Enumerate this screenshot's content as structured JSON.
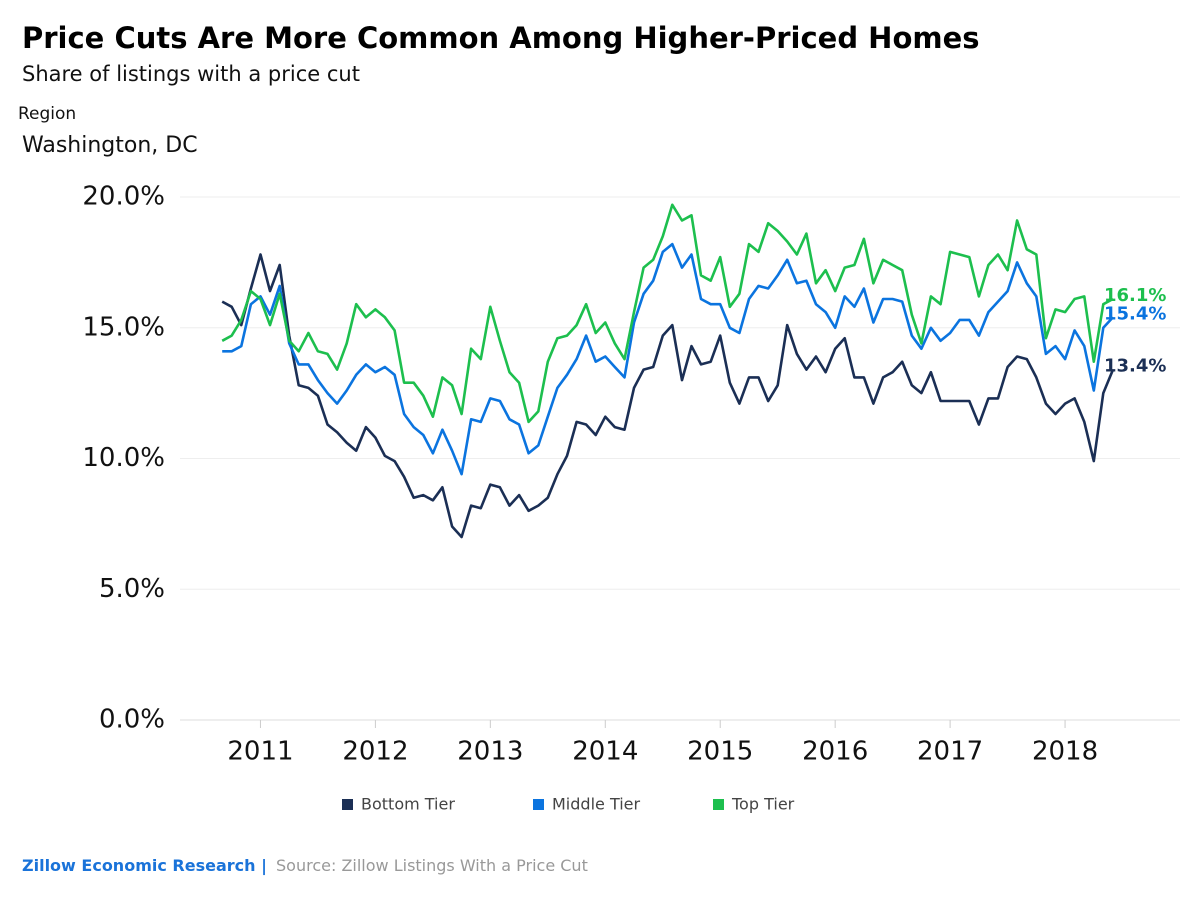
{
  "chart_data": {
    "type": "line",
    "title": "Price Cuts Are More Common Among Higher-Priced Homes",
    "subtitle": "Share of listings with a price cut",
    "filter_label": "Region",
    "filter_value": "Washington, DC",
    "footer_brand": "Zillow Economic Research |",
    "footer_source": "Source: Zillow Listings With a Price Cut",
    "x": [
      2010.667,
      2010.75,
      2010.833,
      2010.917,
      2011.0,
      2011.083,
      2011.167,
      2011.25,
      2011.333,
      2011.417,
      2011.5,
      2011.583,
      2011.667,
      2011.75,
      2011.833,
      2011.917,
      2012.0,
      2012.083,
      2012.167,
      2012.25,
      2012.333,
      2012.417,
      2012.5,
      2012.583,
      2012.667,
      2012.75,
      2012.833,
      2012.917,
      2013.0,
      2013.083,
      2013.167,
      2013.25,
      2013.333,
      2013.417,
      2013.5,
      2013.583,
      2013.667,
      2013.75,
      2013.833,
      2013.917,
      2014.0,
      2014.083,
      2014.167,
      2014.25,
      2014.333,
      2014.417,
      2014.5,
      2014.583,
      2014.667,
      2014.75,
      2014.833,
      2014.917,
      2015.0,
      2015.083,
      2015.167,
      2015.25,
      2015.333,
      2015.417,
      2015.5,
      2015.583,
      2015.667,
      2015.75,
      2015.833,
      2015.917,
      2016.0,
      2016.083,
      2016.167,
      2016.25,
      2016.333,
      2016.417,
      2016.5,
      2016.583,
      2016.667,
      2016.75,
      2016.833,
      2016.917,
      2017.0,
      2017.083,
      2017.167,
      2017.25,
      2017.333,
      2017.417,
      2017.5,
      2017.583,
      2017.667,
      2017.75,
      2017.833,
      2017.917,
      2018.0,
      2018.083,
      2018.167,
      2018.25,
      2018.333,
      2018.417
    ],
    "xlim": [
      2010.3,
      2019
    ],
    "xticks": [
      2011,
      2012,
      2013,
      2014,
      2015,
      2016,
      2017,
      2018
    ],
    "ylim": [
      0,
      20
    ],
    "yticks": [
      {
        "value": 0,
        "label": "0.0%"
      },
      {
        "value": 5,
        "label": "5.0%"
      },
      {
        "value": 10,
        "label": "10.0%"
      },
      {
        "value": 15,
        "label": "15.0%"
      },
      {
        "value": 20,
        "label": "20.0%"
      }
    ],
    "grid": true,
    "legend": "bottom",
    "series": [
      {
        "name": "Bottom Tier",
        "color": "#1b2f55",
        "values": [
          16.0,
          15.8,
          15.1,
          16.5,
          17.8,
          16.4,
          17.4,
          14.7,
          12.8,
          12.7,
          12.4,
          11.3,
          11.0,
          10.6,
          10.3,
          11.2,
          10.8,
          10.1,
          9.9,
          9.3,
          8.5,
          8.6,
          8.4,
          8.9,
          7.4,
          7.0,
          8.2,
          8.1,
          9.0,
          8.9,
          8.2,
          8.6,
          8.0,
          8.2,
          8.5,
          9.4,
          10.1,
          11.4,
          11.3,
          10.9,
          11.6,
          11.2,
          11.1,
          12.7,
          13.4,
          13.5,
          14.7,
          15.1,
          13.0,
          14.3,
          13.6,
          13.7,
          14.7,
          12.9,
          12.1,
          13.1,
          13.1,
          12.2,
          12.8,
          15.1,
          14.0,
          13.4,
          13.9,
          13.3,
          14.2,
          14.6,
          13.1,
          13.1,
          12.1,
          13.1,
          13.3,
          13.7,
          12.8,
          12.5,
          13.3,
          12.2,
          12.2,
          12.2,
          12.2,
          11.3,
          12.3,
          12.3,
          13.5,
          13.9,
          13.8,
          13.1,
          12.1,
          11.7,
          12.1,
          12.3,
          11.4,
          9.9,
          12.5,
          13.4
        ],
        "value_labels": [
          null,
          null,
          null,
          null,
          null,
          null,
          null,
          null,
          null,
          null,
          null,
          null,
          null,
          null,
          null,
          null,
          null,
          null,
          null,
          null,
          null,
          null,
          null,
          null,
          null,
          null,
          null,
          null,
          null,
          null,
          null,
          null,
          null,
          null,
          null,
          null,
          null,
          null,
          null,
          null,
          null,
          null,
          null,
          null,
          null,
          null,
          null,
          null,
          null,
          null,
          null,
          null,
          null,
          null,
          null,
          null,
          null,
          null,
          null,
          null,
          null,
          null,
          null,
          null,
          null,
          null,
          null,
          null,
          null,
          null,
          null,
          null,
          null,
          null,
          null,
          null,
          null,
          null,
          null,
          null,
          null,
          null,
          null,
          null,
          null,
          null,
          null,
          null,
          null,
          null,
          null,
          null,
          null,
          "13.4%"
        ]
      },
      {
        "name": "Middle Tier",
        "color": "#0b74df",
        "values": [
          14.1,
          14.1,
          14.3,
          15.9,
          16.2,
          15.5,
          16.6,
          14.4,
          13.6,
          13.6,
          13.0,
          12.5,
          12.1,
          12.6,
          13.2,
          13.6,
          13.3,
          13.5,
          13.2,
          11.7,
          11.2,
          10.9,
          10.2,
          11.1,
          10.3,
          9.4,
          11.5,
          11.4,
          12.3,
          12.2,
          11.5,
          11.3,
          10.2,
          10.5,
          11.6,
          12.7,
          13.2,
          13.8,
          14.7,
          13.7,
          13.9,
          13.5,
          13.1,
          15.2,
          16.3,
          16.8,
          17.9,
          18.2,
          17.3,
          17.8,
          16.1,
          15.9,
          15.9,
          15.0,
          14.8,
          16.1,
          16.6,
          16.5,
          17.0,
          17.6,
          16.7,
          16.8,
          15.9,
          15.6,
          15.0,
          16.2,
          15.8,
          16.5,
          15.2,
          16.1,
          16.1,
          16.0,
          14.7,
          14.2,
          15.0,
          14.5,
          14.8,
          15.3,
          15.3,
          14.7,
          15.6,
          16.0,
          16.4,
          17.5,
          16.7,
          16.2,
          14.0,
          14.3,
          13.8,
          14.9,
          14.3,
          12.6,
          15.0,
          15.4
        ],
        "value_labels": [
          null,
          null,
          null,
          null,
          null,
          null,
          null,
          null,
          null,
          null,
          null,
          null,
          null,
          null,
          null,
          null,
          null,
          null,
          null,
          null,
          null,
          null,
          null,
          null,
          null,
          null,
          null,
          null,
          null,
          null,
          null,
          null,
          null,
          null,
          null,
          null,
          null,
          null,
          null,
          null,
          null,
          null,
          null,
          null,
          null,
          null,
          null,
          null,
          null,
          null,
          null,
          null,
          null,
          null,
          null,
          null,
          null,
          null,
          null,
          null,
          null,
          null,
          null,
          null,
          null,
          null,
          null,
          null,
          null,
          null,
          null,
          null,
          null,
          null,
          null,
          null,
          null,
          null,
          null,
          null,
          null,
          null,
          null,
          null,
          null,
          null,
          null,
          null,
          null,
          null,
          null,
          null,
          null,
          "15.4%"
        ]
      },
      {
        "name": "Top Tier",
        "color": "#1dbf4e",
        "values": [
          14.5,
          14.7,
          15.3,
          16.4,
          16.1,
          15.1,
          16.3,
          14.5,
          14.1,
          14.8,
          14.1,
          14.0,
          13.4,
          14.4,
          15.9,
          15.4,
          15.7,
          15.4,
          14.9,
          12.9,
          12.9,
          12.4,
          11.6,
          13.1,
          12.8,
          11.7,
          14.2,
          13.8,
          15.8,
          14.5,
          13.3,
          12.9,
          11.4,
          11.8,
          13.7,
          14.6,
          14.7,
          15.1,
          15.9,
          14.8,
          15.2,
          14.4,
          13.8,
          15.6,
          17.3,
          17.6,
          18.5,
          19.7,
          19.1,
          19.3,
          17.0,
          16.8,
          17.7,
          15.8,
          16.3,
          18.2,
          17.9,
          19.0,
          18.7,
          18.3,
          17.8,
          18.6,
          16.7,
          17.2,
          16.4,
          17.3,
          17.4,
          18.4,
          16.7,
          17.6,
          17.4,
          17.2,
          15.5,
          14.4,
          16.2,
          15.9,
          17.9,
          17.8,
          17.7,
          16.2,
          17.4,
          17.8,
          17.2,
          19.1,
          18.0,
          17.8,
          14.6,
          15.7,
          15.6,
          16.1,
          16.2,
          13.7,
          15.9,
          16.1
        ],
        "value_labels": [
          null,
          null,
          null,
          null,
          null,
          null,
          null,
          null,
          null,
          null,
          null,
          null,
          null,
          null,
          null,
          null,
          null,
          null,
          null,
          null,
          null,
          null,
          null,
          null,
          null,
          null,
          null,
          null,
          null,
          null,
          null,
          null,
          null,
          null,
          null,
          null,
          null,
          null,
          null,
          null,
          null,
          null,
          null,
          null,
          null,
          null,
          null,
          null,
          null,
          null,
          null,
          null,
          null,
          null,
          null,
          null,
          null,
          null,
          null,
          null,
          null,
          null,
          null,
          null,
          null,
          null,
          null,
          null,
          null,
          null,
          null,
          null,
          null,
          null,
          null,
          null,
          null,
          null,
          null,
          null,
          null,
          null,
          null,
          null,
          null,
          null,
          null,
          null,
          null,
          null,
          null,
          null,
          null,
          "16.1%"
        ]
      }
    ]
  }
}
